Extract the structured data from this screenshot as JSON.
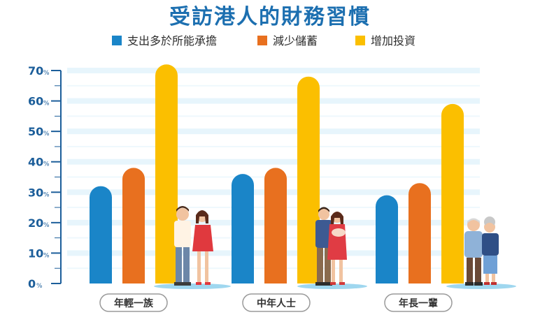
{
  "chart_data": {
    "type": "bar",
    "title": "受訪港人的財務習慣",
    "categories": [
      "年輕一族",
      "中年人士",
      "年長一輩"
    ],
    "series": [
      {
        "name": "支出多於所能承擔",
        "values": [
          32,
          36,
          29
        ],
        "color": "#1a85c8"
      },
      {
        "name": "減少儲蓄",
        "values": [
          38,
          38,
          33
        ],
        "color": "#e8701f"
      },
      {
        "name": "增加投資",
        "values": [
          72,
          68,
          59
        ],
        "color": "#fbbf00"
      }
    ],
    "y_ticks": [
      0,
      10,
      20,
      30,
      40,
      50,
      60,
      70
    ],
    "y_tick_suffix": "%",
    "ylim": [
      0,
      70
    ],
    "grid": true,
    "legend_position": "top",
    "illustrations": [
      "young-couple",
      "parents-with-baby",
      "elderly-couple"
    ]
  }
}
